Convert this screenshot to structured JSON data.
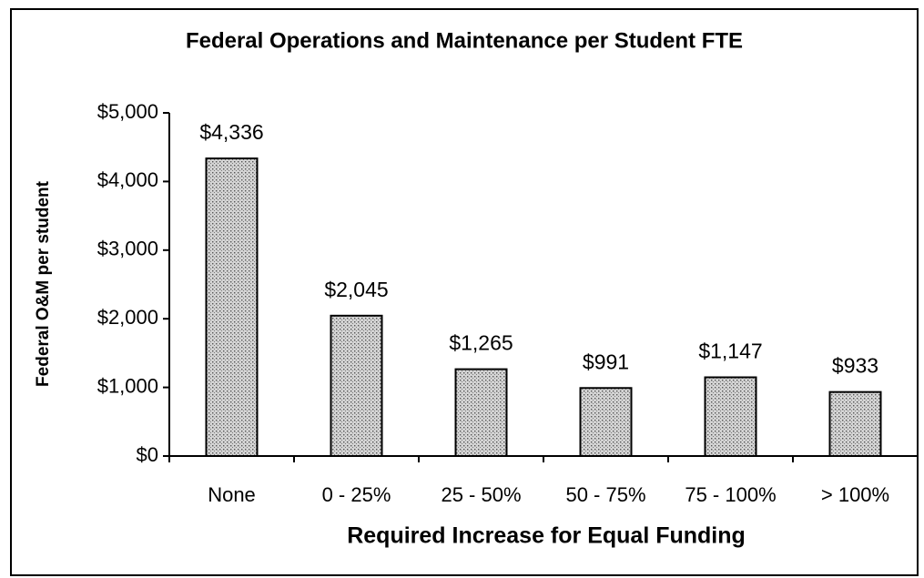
{
  "chart_data": {
    "type": "bar",
    "title": "Federal Operations and Maintenance per Student FTE",
    "x_label": "Required Increase for Equal Funding",
    "y_label": "Federal O&M per student",
    "categories": [
      "None",
      "0 - 25%",
      "25 - 50%",
      "50 - 75%",
      "75 - 100%",
      "> 100%"
    ],
    "values": [
      4336,
      2045,
      1265,
      991,
      1147,
      933
    ],
    "value_labels": [
      "$4,336",
      "$2,045",
      "$1,265",
      "$991",
      "$1,147",
      "$933"
    ],
    "color": "#d4d4d4",
    "ylim": [
      0,
      5000
    ],
    "yticks": [
      {
        "value": 0,
        "label": "$0"
      },
      {
        "value": 1000,
        "label": "$1,000"
      },
      {
        "value": 2000,
        "label": "$2,000"
      },
      {
        "value": 3000,
        "label": "$3,000"
      },
      {
        "value": 4000,
        "label": "$4,000"
      },
      {
        "value": 5000,
        "label": "$5,000"
      }
    ],
    "grid": false
  }
}
